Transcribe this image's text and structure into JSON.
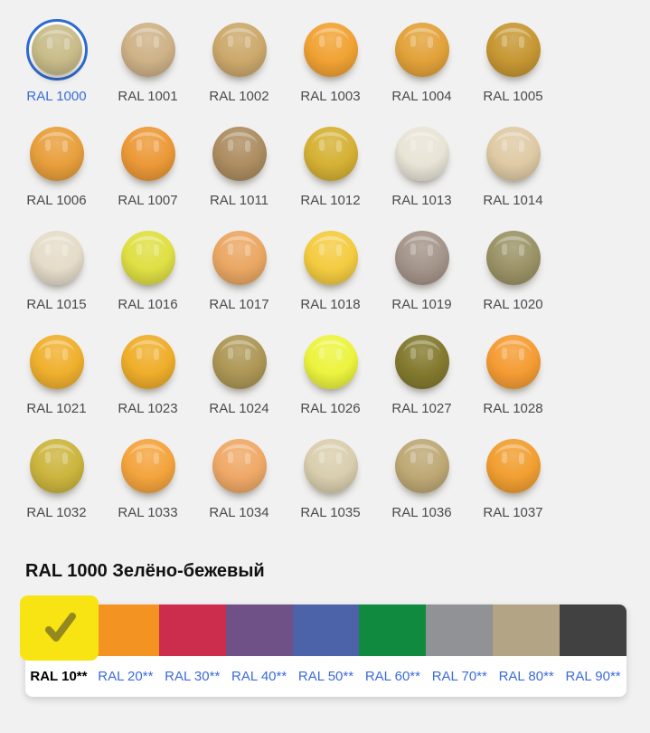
{
  "page": {
    "background": "#F1F1F1",
    "link_color": "#3C6BDC",
    "label_color": "#4A4A4A",
    "selected_ring_color": "#2B6BD3"
  },
  "palette_grid": {
    "items": [
      {
        "code": "RAL 1000",
        "hex": "#C8BC89",
        "selected": true
      },
      {
        "code": "RAL 1001",
        "hex": "#CEB287"
      },
      {
        "code": "RAL 1002",
        "hex": "#CCA96C"
      },
      {
        "code": "RAL 1003",
        "hex": "#F1A233"
      },
      {
        "code": "RAL 1004",
        "hex": "#E2A23A"
      },
      {
        "code": "RAL 1005",
        "hex": "#C79733"
      },
      {
        "code": "RAL 1006",
        "hex": "#E89F3C"
      },
      {
        "code": "RAL 1007",
        "hex": "#EC9937"
      },
      {
        "code": "RAL 1011",
        "hex": "#AD8D61"
      },
      {
        "code": "RAL 1012",
        "hex": "#D5B134"
      },
      {
        "code": "RAL 1013",
        "hex": "#E8E4D6"
      },
      {
        "code": "RAL 1014",
        "hex": "#DFCAA5"
      },
      {
        "code": "RAL 1015",
        "hex": "#E5DCC9"
      },
      {
        "code": "RAL 1016",
        "hex": "#DFDF44"
      },
      {
        "code": "RAL 1017",
        "hex": "#EAA763"
      },
      {
        "code": "RAL 1018",
        "hex": "#F4CC41"
      },
      {
        "code": "RAL 1019",
        "hex": "#A4958A"
      },
      {
        "code": "RAL 1020",
        "hex": "#9B9367"
      },
      {
        "code": "RAL 1021",
        "hex": "#F0B02E"
      },
      {
        "code": "RAL 1023",
        "hex": "#EFAE2B"
      },
      {
        "code": "RAL 1024",
        "hex": "#AD9756"
      },
      {
        "code": "RAL 1026",
        "hex": "#ECF43E"
      },
      {
        "code": "RAL 1027",
        "hex": "#837A2F"
      },
      {
        "code": "RAL 1028",
        "hex": "#F59C34"
      },
      {
        "code": "RAL 1032",
        "hex": "#CCB53E"
      },
      {
        "code": "RAL 1033",
        "hex": "#F4A43D"
      },
      {
        "code": "RAL 1034",
        "hex": "#EFA967"
      },
      {
        "code": "RAL 1035",
        "hex": "#D9CEAE"
      },
      {
        "code": "RAL 1036",
        "hex": "#BEA875"
      },
      {
        "code": "RAL 1037",
        "hex": "#F19F31"
      }
    ]
  },
  "detail": {
    "title": "RAL 1000 Зелёно-бежевый"
  },
  "series_bar": {
    "checkmark_icon_color": "#93891F",
    "items": [
      {
        "label": "RAL 10**",
        "hex": "#F8E412",
        "selected": true
      },
      {
        "label": "RAL 20**",
        "hex": "#F39422"
      },
      {
        "label": "RAL 30**",
        "hex": "#CC2D4D"
      },
      {
        "label": "RAL 40**",
        "hex": "#6F5187"
      },
      {
        "label": "RAL 50**",
        "hex": "#4D63A9"
      },
      {
        "label": "RAL 60**",
        "hex": "#108A3E"
      },
      {
        "label": "RAL 70**",
        "hex": "#909295"
      },
      {
        "label": "RAL 80**",
        "hex": "#B4A486"
      },
      {
        "label": "RAL 90**",
        "hex": "#414141"
      }
    ]
  }
}
